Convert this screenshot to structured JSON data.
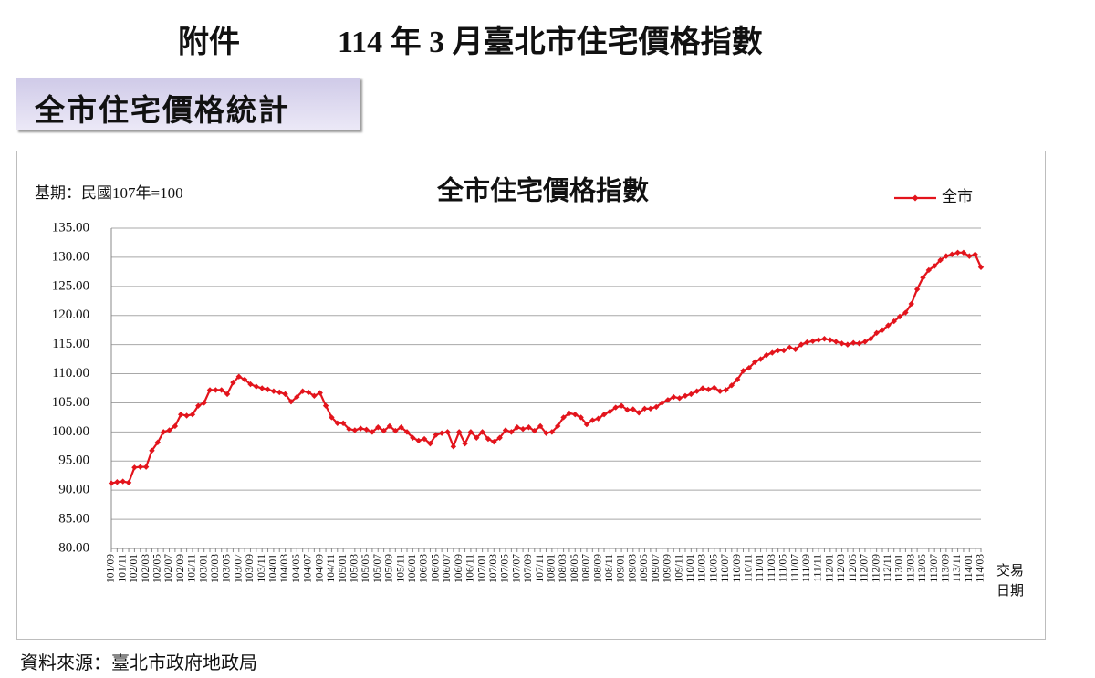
{
  "header_label": "附件",
  "header_title": "114 年 3 月臺北市住宅價格指數",
  "section_title": "全市住宅價格統計",
  "source": "資料來源：臺北市政府地政局",
  "chart_data": {
    "type": "line",
    "title": "全市住宅價格指數",
    "annotation": "基期：民國107年=100",
    "xlabel": "交易日期",
    "legend": "top-right",
    "grid": true,
    "ylim": [
      80,
      135
    ],
    "yticks": [
      {
        "value": 80,
        "label": "80.00"
      },
      {
        "value": 85,
        "label": "85.00"
      },
      {
        "value": 90,
        "label": "90.00"
      },
      {
        "value": 95,
        "label": "95.00"
      },
      {
        "value": 100,
        "label": "100.00"
      },
      {
        "value": 105,
        "label": "105.00"
      },
      {
        "value": 110,
        "label": "110.00"
      },
      {
        "value": 115,
        "label": "115.00"
      },
      {
        "value": 120,
        "label": "120.00"
      },
      {
        "value": 125,
        "label": "125.00"
      },
      {
        "value": 130,
        "label": "130.00"
      },
      {
        "value": 135,
        "label": "135.00"
      }
    ],
    "categories": [
      "101/09",
      null,
      "101/11",
      null,
      "102/01",
      null,
      "102/03",
      null,
      "102/05",
      null,
      "102/07",
      null,
      "102/09",
      null,
      "102/11",
      null,
      "103/01",
      null,
      "103/03",
      null,
      "103/05",
      null,
      "103/07",
      null,
      "103/09",
      null,
      "103/11",
      null,
      "104/01",
      null,
      "104/03",
      null,
      "104/05",
      null,
      "104/07",
      null,
      "104/09",
      null,
      "104/11",
      null,
      "105/01",
      null,
      "105/03",
      null,
      "105/05",
      null,
      "105/07",
      null,
      "105/09",
      null,
      "105/11",
      null,
      "106/01",
      null,
      "106/03",
      null,
      "106/05",
      null,
      "106/07",
      null,
      "106/09",
      null,
      "106/11",
      null,
      "107/01",
      null,
      "107/03",
      null,
      "107/05",
      null,
      "107/07",
      null,
      "107/09",
      null,
      "107/11",
      null,
      "108/01",
      null,
      "108/03",
      null,
      "108/05",
      null,
      "108/07",
      null,
      "108/09",
      null,
      "108/11",
      null,
      "109/01",
      null,
      "109/03",
      null,
      "109/05",
      null,
      "109/07",
      null,
      "109/09",
      null,
      "109/11",
      null,
      "110/01",
      null,
      "110/03",
      null,
      "110/05",
      null,
      "110/07",
      null,
      "110/09",
      null,
      "110/11",
      null,
      "111/01",
      null,
      "111/03",
      null,
      "111/05",
      null,
      "111/07",
      null,
      "111/09",
      null,
      "111/11",
      null,
      "112/01",
      null,
      "112/03",
      null,
      "112/05",
      null,
      "112/07",
      null,
      "112/09",
      null,
      "112/11",
      null,
      "113/01",
      null,
      "113/03",
      null,
      "113/05",
      null,
      "113/07",
      null,
      "113/09",
      null,
      "113/11",
      null,
      "114/01",
      null,
      "114/03"
    ],
    "series": [
      {
        "name": "全市",
        "color": "#e3141c",
        "values": [
          91.2,
          91.4,
          91.5,
          91.3,
          93.9,
          94.0,
          94.0,
          96.8,
          98.2,
          100.0,
          100.3,
          101.0,
          103.0,
          102.8,
          103.0,
          104.5,
          105.0,
          107.2,
          107.2,
          107.2,
          106.5,
          108.5,
          109.5,
          109.0,
          108.2,
          107.8,
          107.5,
          107.3,
          107.0,
          106.8,
          106.5,
          105.2,
          106.0,
          107.0,
          106.8,
          106.2,
          106.7,
          104.5,
          102.5,
          101.5,
          101.5,
          100.5,
          100.3,
          100.6,
          100.4,
          100.0,
          100.8,
          100.2,
          101.0,
          100.2,
          100.8,
          100.0,
          99.0,
          98.5,
          98.8,
          98.0,
          99.5,
          99.8,
          100.0,
          97.5,
          100.0,
          98.0,
          100.0,
          99.0,
          100.0,
          98.8,
          98.3,
          99.0,
          100.3,
          100.0,
          100.8,
          100.5,
          100.8,
          100.2,
          101.0,
          99.8,
          100.0,
          101.0,
          102.5,
          103.2,
          103.0,
          102.5,
          101.3,
          102.0,
          102.3,
          103.0,
          103.5,
          104.2,
          104.5,
          103.8,
          103.9,
          103.3,
          104.0,
          104.0,
          104.3,
          105.0,
          105.5,
          106.0,
          105.8,
          106.2,
          106.5,
          107.0,
          107.5,
          107.3,
          107.6,
          107.0,
          107.2,
          108.0,
          109.0,
          110.5,
          111.0,
          112.0,
          112.5,
          113.2,
          113.6,
          114.0,
          114.0,
          114.5,
          114.2,
          115.0,
          115.4,
          115.6,
          115.8,
          116.0,
          115.8,
          115.5,
          115.2,
          115.0,
          115.3,
          115.2,
          115.5,
          116.0,
          117.0,
          117.5,
          118.3,
          119.0,
          119.8,
          120.5,
          122.0,
          124.5,
          126.5,
          127.8,
          128.5,
          129.5,
          130.2,
          130.5,
          130.8,
          130.8,
          130.2,
          130.5,
          128.3
        ]
      }
    ]
  }
}
